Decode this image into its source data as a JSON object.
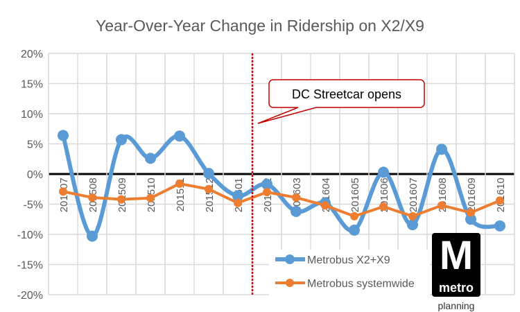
{
  "chart_data": {
    "type": "line",
    "title": "Year-Over-Year Change in Ridership on X2/X9",
    "xlabel": "",
    "ylabel": "",
    "categories": [
      "201507",
      "201508",
      "201509",
      "201510",
      "201511",
      "201512",
      "201601",
      "201602",
      "201603",
      "201604",
      "201605",
      "201606",
      "201607",
      "201608",
      "201609",
      "201610"
    ],
    "ylim": [
      -20,
      20
    ],
    "yticks": [
      "20%",
      "15%",
      "10%",
      "5%",
      "0%",
      "-5%",
      "-10%",
      "-15%",
      "-20%"
    ],
    "ytick_values": [
      20,
      15,
      10,
      5,
      0,
      -5,
      -10,
      -15,
      -20
    ],
    "grid": true,
    "legend": "bottom-right",
    "series": [
      {
        "name": "Metrobus X2+X9",
        "color": "#5B9BD5",
        "smooth": true,
        "values": [
          6.4,
          -10.3,
          5.7,
          2.6,
          6.3,
          0.1,
          -3.6,
          -1.7,
          -6.2,
          -4.8,
          -9.3,
          0.3,
          -8.4,
          4.1,
          -7.5,
          -8.6
        ]
      },
      {
        "name": "Metrobus systemwide",
        "color": "#ED7D31",
        "smooth": false,
        "values": [
          -2.9,
          -3.9,
          -4.2,
          -4.0,
          -1.6,
          -2.5,
          -4.8,
          -3.0,
          -3.9,
          -5.2,
          -7.0,
          -5.4,
          -7.0,
          -5.2,
          -6.4,
          -4.4
        ]
      }
    ],
    "annotation": {
      "text": "DC Streetcar opens",
      "between": [
        "201601",
        "201602"
      ],
      "line_color": "#E00000"
    }
  },
  "logo": {
    "letter": "M",
    "word": "metro",
    "sub": "planning"
  }
}
